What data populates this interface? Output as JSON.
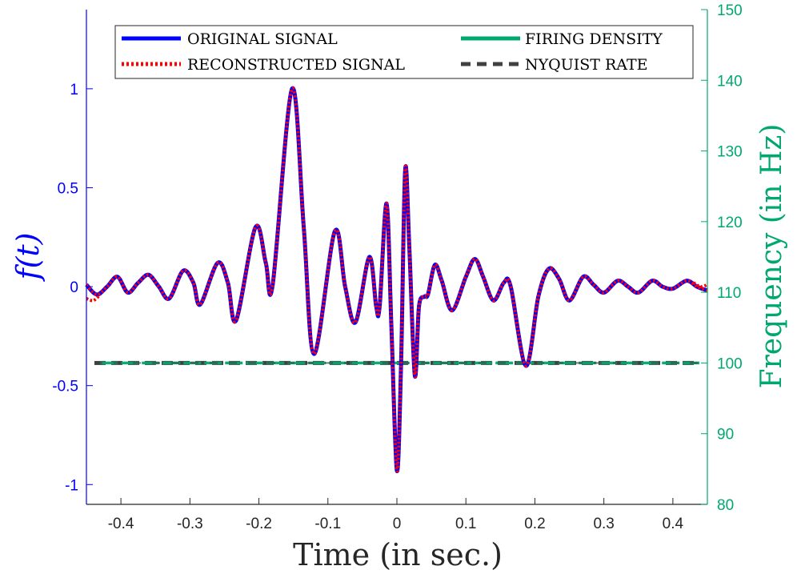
{
  "chart_data": {
    "type": "line",
    "xlabel": "Time (in sec.)",
    "ylabel_left": "f(t)",
    "ylabel_right": "Frequency (in Hz)",
    "xlim": [
      -0.45,
      0.45
    ],
    "ylim_left": [
      -1.1,
      1.4
    ],
    "ylim_right": [
      80,
      150
    ],
    "x_ticks": [
      -0.4,
      -0.3,
      -0.2,
      -0.1,
      0,
      0.1,
      0.2,
      0.3,
      0.4
    ],
    "x_tick_labels": [
      "-0.4",
      "-0.3",
      "-0.2",
      "-0.1",
      "0",
      "0.1",
      "0.2",
      "0.3",
      "0.4"
    ],
    "y_left_ticks": [
      -1,
      -0.5,
      0,
      0.5,
      1
    ],
    "y_left_tick_labels": [
      "-1",
      "-0.5",
      "0",
      "0.5",
      "1"
    ],
    "y_right_ticks": [
      80,
      90,
      100,
      110,
      120,
      130,
      140,
      150
    ],
    "y_right_tick_labels": [
      "80",
      "90",
      "100",
      "110",
      "120",
      "130",
      "140",
      "150"
    ],
    "grid": false,
    "legend_position": "top",
    "legend": [
      {
        "label": "ORIGINAL SIGNAL",
        "color": "#0000ff",
        "style": "solid"
      },
      {
        "label": "FIRING DENSITY",
        "color": "#00a870",
        "style": "solid"
      },
      {
        "label": "RECONSTRUCTED SIGNAL",
        "color": "#ff0000",
        "style": "dotted"
      },
      {
        "label": "NYQUIST RATE",
        "color": "#404040",
        "style": "dashed"
      }
    ],
    "signal_keypoints": [
      [
        -0.45,
        0.01
      ],
      [
        -0.435,
        -0.04
      ],
      [
        -0.42,
        0.0
      ],
      [
        -0.405,
        0.05
      ],
      [
        -0.39,
        -0.03
      ],
      [
        -0.375,
        0.02
      ],
      [
        -0.36,
        0.06
      ],
      [
        -0.345,
        0.0
      ],
      [
        -0.33,
        -0.06
      ],
      [
        -0.31,
        0.08
      ],
      [
        -0.295,
        0.02
      ],
      [
        -0.285,
        -0.09
      ],
      [
        -0.26,
        0.12
      ],
      [
        -0.245,
        0.02
      ],
      [
        -0.233,
        -0.17
      ],
      [
        -0.205,
        0.3
      ],
      [
        -0.19,
        0.12
      ],
      [
        -0.18,
        0.01
      ],
      [
        -0.152,
        1.0
      ],
      [
        -0.135,
        0.3
      ],
      [
        -0.12,
        -0.34
      ],
      [
        -0.09,
        0.28
      ],
      [
        -0.075,
        0.0
      ],
      [
        -0.06,
        -0.18
      ],
      [
        -0.04,
        0.15
      ],
      [
        -0.03,
        -0.1
      ],
      [
        -0.025,
        -0.1
      ],
      [
        -0.015,
        0.42
      ],
      [
        -0.008,
        -0.2
      ],
      [
        0.0,
        -0.93
      ],
      [
        0.006,
        -0.4
      ],
      [
        0.012,
        0.59
      ],
      [
        0.018,
        0.2
      ],
      [
        0.026,
        -0.45
      ],
      [
        0.032,
        -0.1
      ],
      [
        0.04,
        -0.05
      ],
      [
        0.045,
        -0.04
      ],
      [
        0.055,
        0.11
      ],
      [
        0.065,
        0.03
      ],
      [
        0.08,
        -0.12
      ],
      [
        0.1,
        0.05
      ],
      [
        0.113,
        0.14
      ],
      [
        0.125,
        0.05
      ],
      [
        0.14,
        -0.07
      ],
      [
        0.155,
        0.02
      ],
      [
        0.165,
        0.0
      ],
      [
        0.187,
        -0.4
      ],
      [
        0.205,
        -0.05
      ],
      [
        0.22,
        0.09
      ],
      [
        0.235,
        0.04
      ],
      [
        0.25,
        -0.07
      ],
      [
        0.27,
        0.05
      ],
      [
        0.285,
        0.01
      ],
      [
        0.3,
        -0.03
      ],
      [
        0.32,
        0.03
      ],
      [
        0.335,
        0.0
      ],
      [
        0.35,
        -0.03
      ],
      [
        0.37,
        0.03
      ],
      [
        0.385,
        0.0
      ],
      [
        0.4,
        -0.01
      ],
      [
        0.42,
        0.03
      ],
      [
        0.435,
        0.0
      ],
      [
        0.45,
        -0.02
      ]
    ],
    "reconstructed_edge_left": [
      [
        -0.45,
        -0.06
      ],
      [
        -0.44,
        -0.07
      ],
      [
        -0.43,
        -0.04
      ]
    ],
    "reconstructed_edge_right": [
      [
        0.43,
        0.02
      ],
      [
        0.44,
        0.0
      ],
      [
        0.45,
        0.01
      ]
    ],
    "nyquist_rate": {
      "x": [
        -0.45,
        0.45
      ],
      "y": 100
    },
    "firing_density": {
      "x": [
        -0.43,
        0.45
      ],
      "y": 100
    }
  }
}
